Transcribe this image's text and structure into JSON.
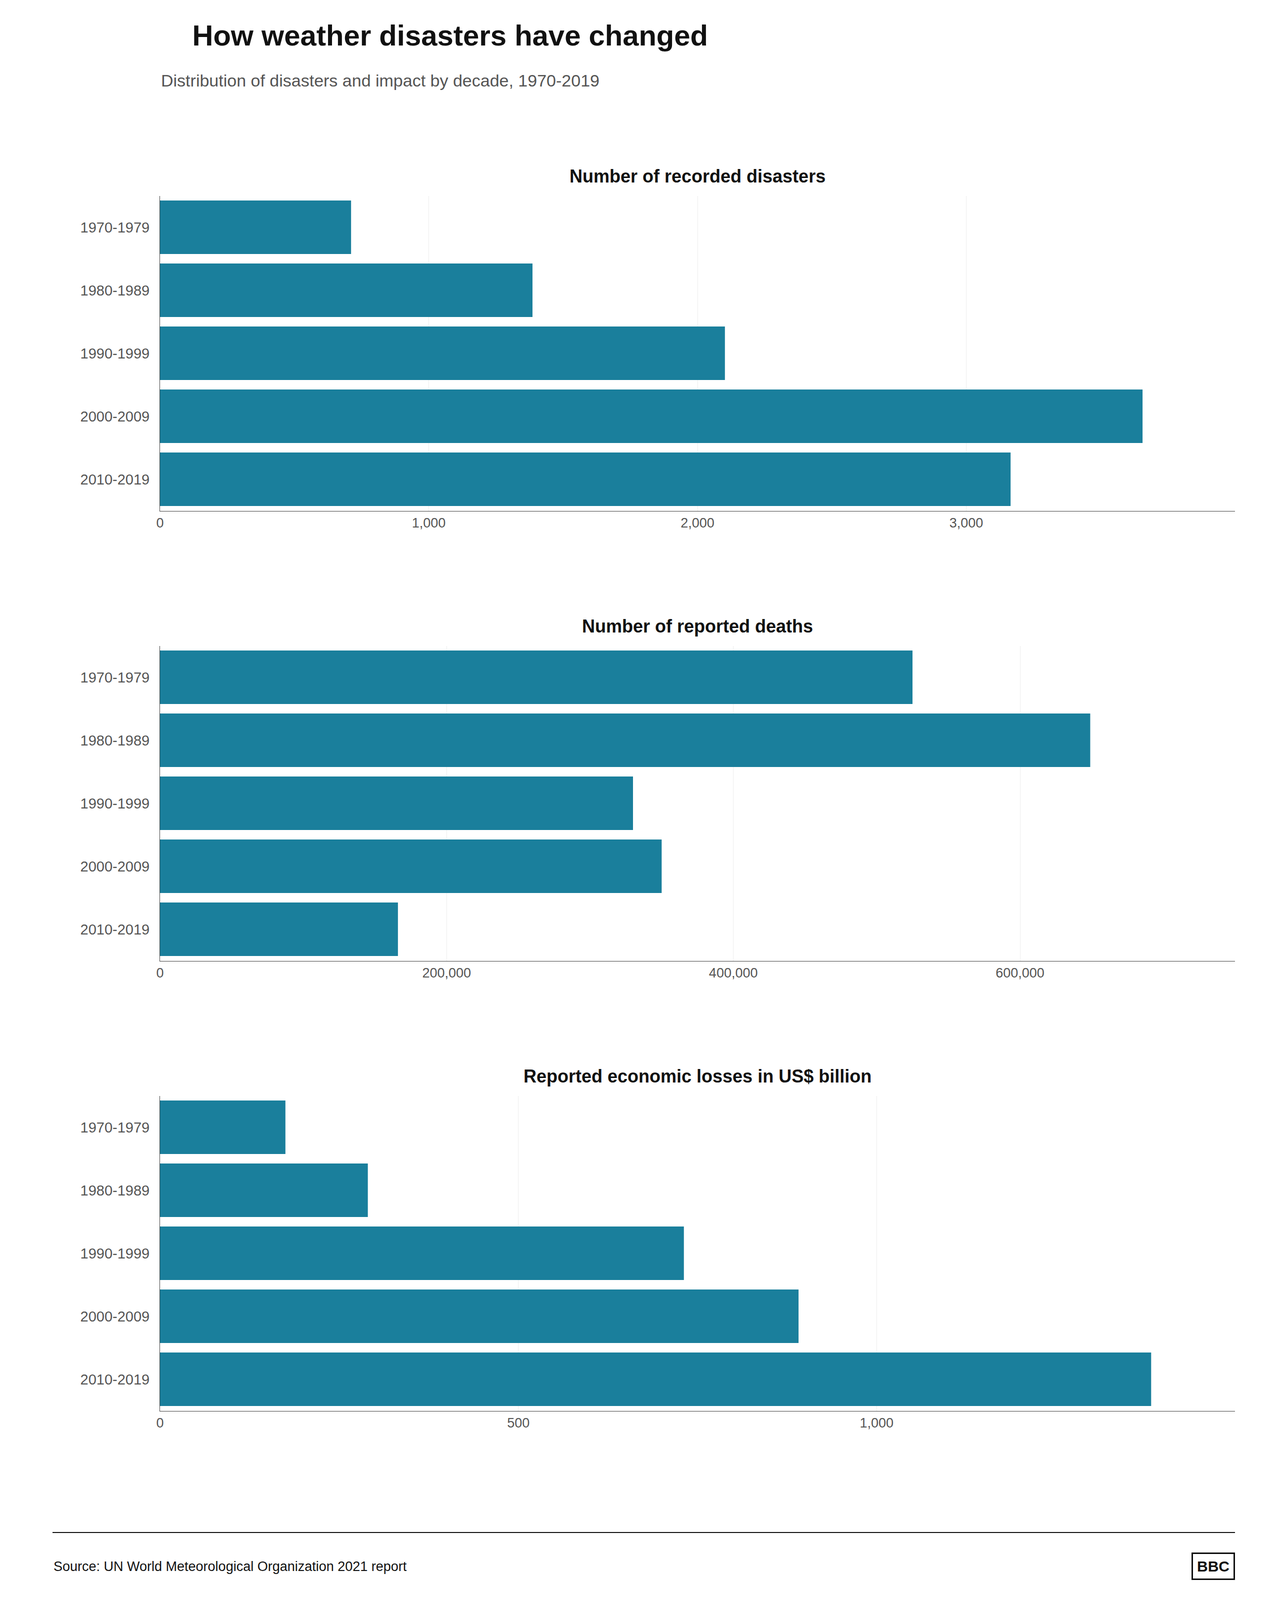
{
  "title": "How weather disasters have changed",
  "subtitle": "Distribution of disasters and impact by decade, 1970-2019",
  "annotations": [
    "Source: UN World Meteorological Organization 2021 report",
    "BBC"
  ],
  "chart_data": [
    {
      "type": "bar",
      "orientation": "horizontal",
      "title": "Number of recorded disasters",
      "categories": [
        "1970-1979",
        "1980-1989",
        "1990-1999",
        "2000-2009",
        "2010-2019"
      ],
      "values": [
        711,
        1386,
        2102,
        3656,
        3165
      ],
      "color": "#1a7f9c",
      "xlim": [
        0,
        4000
      ],
      "xticks": [
        0,
        {
          "value": 1000,
          "label": "1,000"
        },
        {
          "value": 2000,
          "label": "2,000"
        },
        {
          "value": 3000,
          "label": "3,000"
        }
      ],
      "grid": true
    },
    {
      "type": "bar",
      "orientation": "horizontal",
      "title": "Number of reported deaths",
      "categories": [
        "1970-1979",
        "1980-1989",
        "1990-1999",
        "2000-2009",
        "2010-2019"
      ],
      "values": [
        525000,
        649000,
        330000,
        350000,
        166000
      ],
      "color": "#1a7f9c",
      "xlim": [
        0,
        750000
      ],
      "xticks": [
        0,
        {
          "value": 200000,
          "label": "200,000"
        },
        {
          "value": 400000,
          "label": "400,000"
        },
        {
          "value": 600000,
          "label": "600,000"
        }
      ],
      "grid": true
    },
    {
      "type": "bar",
      "orientation": "horizontal",
      "title": "Reported economic losses in US$ billion",
      "categories": [
        "1970-1979",
        "1980-1989",
        "1990-1999",
        "2000-2009",
        "2010-2019"
      ],
      "values": [
        175,
        290,
        731,
        891,
        1383
      ],
      "color": "#1a7f9c",
      "xlim": [
        0,
        1500
      ],
      "xticks": [
        0,
        500,
        {
          "value": 1000,
          "label": "1,000"
        }
      ],
      "grid": true
    }
  ]
}
